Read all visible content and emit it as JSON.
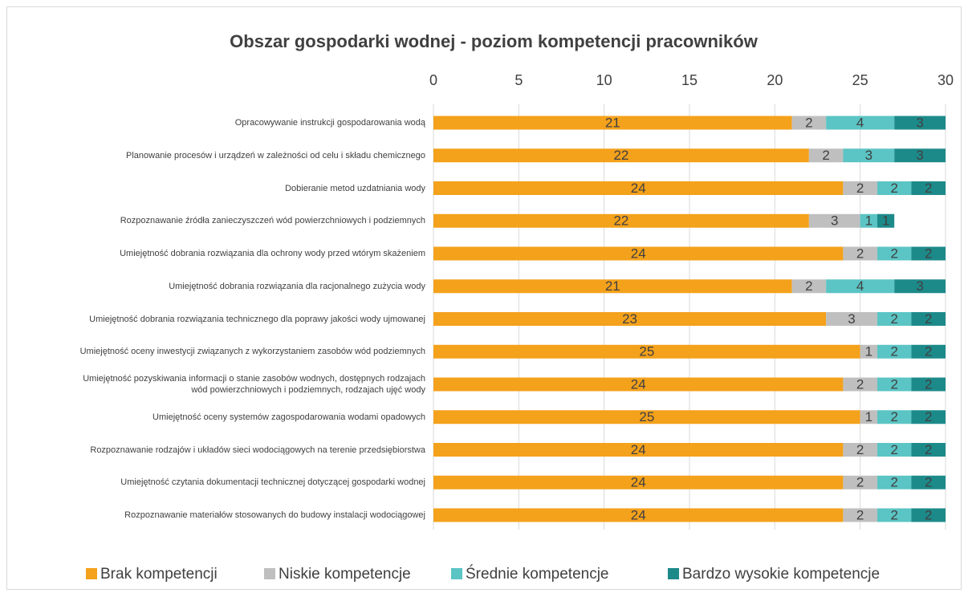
{
  "chart_data": {
    "type": "stacked_barh",
    "title": "Obszar gospodarki wodnej - poziom kompetencji pracowników",
    "categories": [
      "Opracowywanie instrukcji gospodarowania wodą",
      "Planowanie procesów i urządzeń w zależności od celu i składu chemicznego",
      "Dobieranie metod uzdatniania wody",
      "Rozpoznawanie źródła zanieczyszczeń wód powierzchniowych i podziemnych",
      "Umiejętność dobrania rozwiązania dla ochrony wody przed wtórym skażeniem",
      "Umiejętność dobrania rozwiązania dla racjonalnego zużycia wody",
      "Umiejętność dobrania rozwiązania technicznego dla poprawy jakości wody ujmowanej",
      "Umiejętność oceny inwestycji związanych z wykorzystaniem zasobów wód podziemnych",
      "Umiejętność pozyskiwania informacji o stanie zasobów wodnych, dostępnych rodzajach wód powierzchniowych i podziemnych, rodzajach ujęć wody",
      "Umiejętność oceny systemów zagospodarowania wodami opadowych",
      "Rozpoznawanie rodzajów i układów sieci wodociągowych na terenie przedsiębiorstwa",
      "Umiejętność czytania dokumentacji technicznej dotyczącej gospodarki wodnej",
      "Rozpoznawanie materiałów stosowanych do budowy instalacji wodociągowej"
    ],
    "series": [
      {
        "name": "Brak kompetencji",
        "color": "#f4a11b",
        "values": [
          21,
          22,
          24,
          22,
          24,
          21,
          23,
          25,
          24,
          25,
          24,
          24,
          24
        ]
      },
      {
        "name": "Niskie kompetencje",
        "color": "#bfbfbf",
        "values": [
          2,
          2,
          2,
          3,
          2,
          2,
          3,
          1,
          2,
          1,
          2,
          2,
          2
        ]
      },
      {
        "name": "Średnie kompetencje",
        "color": "#5bc4c4",
        "values": [
          4,
          3,
          2,
          1,
          2,
          4,
          2,
          2,
          2,
          2,
          2,
          2,
          2
        ]
      },
      {
        "name": "Bardzo wysokie kompetencje",
        "color": "#1d8a8a",
        "values": [
          3,
          3,
          2,
          1,
          2,
          3,
          2,
          2,
          2,
          2,
          2,
          2,
          2
        ]
      }
    ],
    "xlim": [
      0,
      30
    ],
    "xticks": [
      0,
      5,
      10,
      15,
      20,
      25,
      30
    ],
    "grid": true,
    "legend": "bottom"
  }
}
